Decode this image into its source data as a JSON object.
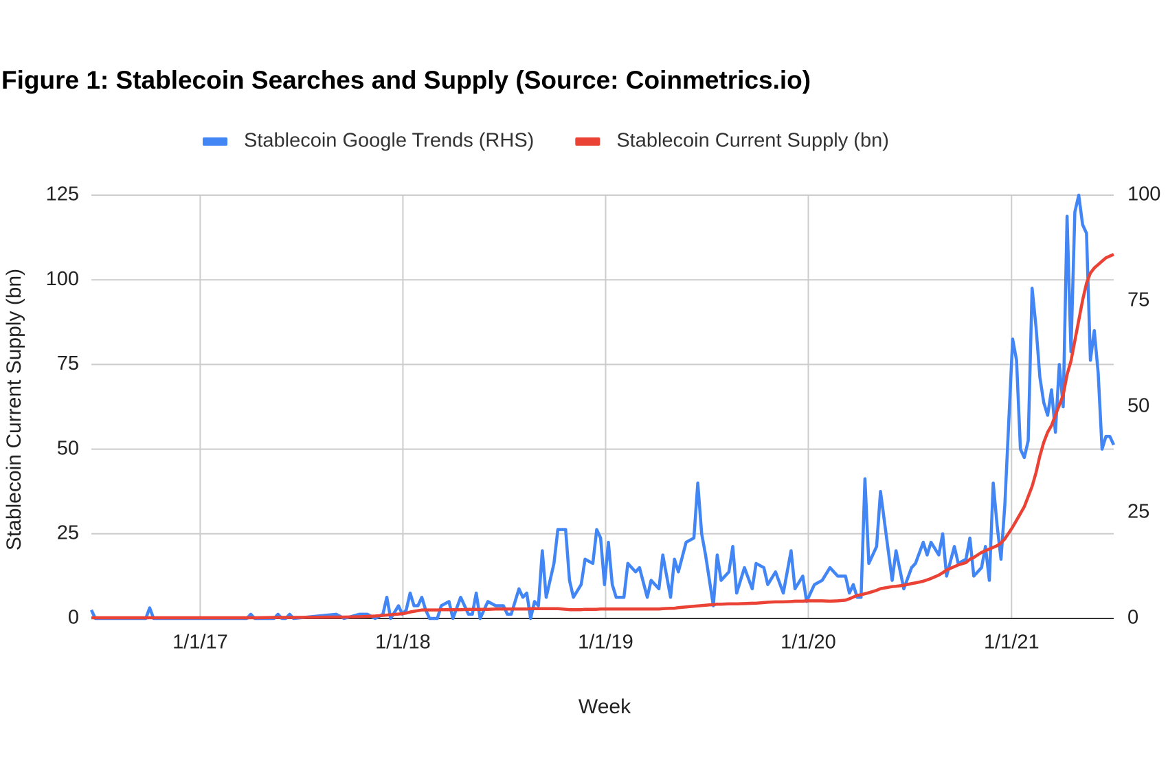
{
  "chart_data": {
    "type": "line",
    "title": "Figure 1: Stablecoin Searches and Supply (Source: Coinmetrics.io)",
    "xlabel": "Week",
    "ylabel": "Stablecoin Current Supply (bn)",
    "legend": "top",
    "grid": true,
    "xlim": [
      "6/19/16",
      "7/4/21"
    ],
    "xticks": [
      "1/1/17",
      "1/1/18",
      "1/1/19",
      "1/1/20",
      "1/1/21"
    ],
    "ylim": [
      0,
      125
    ],
    "yticks": [
      0,
      25,
      50,
      75,
      100,
      125
    ],
    "y2lim": [
      0,
      100
    ],
    "y2ticks": [
      0,
      25,
      50,
      75,
      100
    ],
    "x": [
      "6/19/16",
      "6/26/16",
      "9/25/16",
      "10/2/16",
      "10/9/16",
      "3/26/17",
      "4/2/17",
      "4/9/17",
      "5/14/17",
      "5/21/17",
      "5/28/17",
      "6/4/17",
      "6/11/17",
      "6/18/17",
      "9/3/17",
      "9/17/17",
      "10/15/17",
      "10/29/17",
      "11/12/17",
      "11/26/17",
      "12/3/17",
      "12/10/17",
      "12/24/17",
      "12/31/17",
      "1/7/18",
      "1/14/18",
      "1/21/18",
      "1/28/18",
      "2/4/18",
      "2/11/18",
      "2/18/18",
      "3/4/18",
      "3/11/18",
      "3/25/18",
      "4/1/18",
      "4/15/18",
      "4/29/18",
      "5/6/18",
      "5/13/18",
      "5/20/18",
      "6/3/18",
      "6/17/18",
      "7/1/18",
      "7/8/18",
      "7/15/18",
      "7/29/18",
      "8/5/18",
      "8/12/18",
      "8/19/18",
      "8/26/18",
      "9/2/18",
      "9/9/18",
      "9/16/18",
      "9/30/18",
      "10/7/18",
      "10/21/18",
      "10/28/18",
      "11/4/18",
      "11/18/18",
      "11/25/18",
      "12/9/18",
      "12/16/18",
      "12/23/18",
      "12/30/18",
      "1/6/19",
      "1/13/19",
      "1/20/19",
      "2/3/19",
      "2/10/19",
      "2/24/19",
      "3/3/19",
      "3/17/19",
      "3/24/19",
      "4/7/19",
      "4/14/19",
      "4/28/19",
      "5/5/19",
      "5/12/19",
      "5/26/19",
      "6/9/19",
      "6/16/19",
      "6/23/19",
      "6/30/19",
      "7/14/19",
      "7/21/19",
      "7/28/19",
      "8/11/19",
      "8/18/19",
      "8/25/19",
      "9/8/19",
      "9/22/19",
      "9/29/19",
      "10/13/19",
      "10/20/19",
      "11/3/19",
      "11/17/19",
      "12/1/19",
      "12/8/19",
      "12/22/19",
      "12/29/19",
      "1/12/20",
      "1/26/20",
      "2/9/20",
      "2/23/20",
      "3/8/20",
      "3/15/20",
      "3/22/20",
      "3/29/20",
      "4/5/20",
      "4/12/20",
      "4/19/20",
      "5/3/20",
      "5/10/20",
      "5/24/20",
      "5/31/20",
      "6/7/20",
      "6/21/20",
      "7/5/20",
      "7/12/20",
      "7/26/20",
      "8/2/20",
      "8/9/20",
      "8/23/20",
      "8/30/20",
      "9/6/20",
      "9/20/20",
      "9/27/20",
      "10/11/20",
      "10/18/20",
      "10/25/20",
      "11/8/20",
      "11/15/20",
      "11/22/20",
      "11/29/20",
      "12/6/20",
      "12/13/20",
      "12/20/20",
      "1/3/21",
      "1/10/21",
      "1/17/21",
      "1/24/21",
      "1/31/21",
      "2/7/21",
      "2/14/21",
      "2/21/21",
      "2/28/21",
      "3/7/21",
      "3/14/21",
      "3/21/21",
      "3/28/21",
      "4/4/21",
      "4/11/21",
      "4/18/21",
      "4/25/21",
      "5/2/21",
      "5/9/21",
      "5/16/21",
      "5/23/21",
      "5/30/21",
      "6/6/21",
      "6/13/21",
      "6/20/21",
      "6/27/21",
      "7/4/21"
    ],
    "series": [
      {
        "name": "Stablecoin Google Trends (RHS)",
        "color": "#4285f4",
        "axis": "y2",
        "values": [
          2,
          0,
          0,
          2.5,
          0,
          0,
          1,
          0,
          0,
          1,
          0,
          0,
          1,
          0,
          1,
          0,
          1,
          1,
          0,
          1,
          5,
          0,
          3,
          1,
          2,
          6,
          3,
          3,
          5,
          2,
          0,
          0,
          3,
          4,
          0,
          5,
          1,
          1,
          6,
          0,
          4,
          3,
          3,
          1,
          1,
          7,
          5,
          6,
          0,
          4,
          3,
          16,
          5,
          13,
          21,
          21,
          9,
          5,
          8,
          14,
          13,
          21,
          19,
          8,
          18,
          8,
          5,
          5,
          13,
          11,
          12,
          5,
          9,
          7,
          15,
          5,
          14,
          11,
          18,
          19,
          32,
          20,
          15,
          3,
          15,
          9,
          11,
          17,
          6,
          12,
          7,
          13,
          12,
          8,
          11,
          6,
          16,
          7,
          10,
          4,
          8,
          9,
          12,
          10,
          10,
          6,
          8,
          5,
          5,
          33,
          13,
          17,
          30,
          16,
          9,
          16,
          7,
          12,
          13,
          18,
          15,
          18,
          15,
          20,
          10,
          17,
          13,
          14,
          19,
          10,
          12,
          17,
          9,
          32,
          22,
          14,
          27,
          66,
          61,
          40,
          38,
          42,
          78,
          69,
          57,
          51,
          48,
          54,
          44,
          60,
          50,
          95,
          63,
          96,
          100,
          93,
          91,
          61,
          68,
          58,
          40,
          43,
          43,
          41
        ]
      },
      {
        "name": "Stablecoin Current Supply (bn)",
        "color": "#ea4335",
        "values": [
          0.2,
          0.2,
          0.2,
          0.2,
          0.2,
          0.2,
          0.2,
          0.2,
          0.3,
          0.3,
          0.3,
          0.3,
          0.3,
          0.3,
          0.4,
          0.4,
          0.5,
          0.6,
          0.7,
          0.9,
          1.0,
          1.1,
          1.3,
          1.4,
          1.6,
          1.9,
          2.1,
          2.3,
          2.5,
          2.5,
          2.5,
          2.5,
          2.6,
          2.6,
          2.6,
          2.6,
          2.7,
          2.7,
          2.7,
          2.7,
          2.7,
          2.8,
          2.8,
          2.8,
          2.8,
          2.8,
          2.8,
          2.8,
          2.9,
          2.9,
          2.9,
          2.9,
          2.9,
          2.9,
          2.9,
          2.7,
          2.6,
          2.6,
          2.6,
          2.7,
          2.7,
          2.7,
          2.8,
          2.8,
          2.8,
          2.8,
          2.8,
          2.8,
          2.8,
          2.8,
          2.8,
          2.8,
          2.8,
          2.8,
          2.9,
          3.0,
          3.0,
          3.2,
          3.4,
          3.6,
          3.7,
          3.8,
          3.9,
          4.1,
          4.2,
          4.2,
          4.3,
          4.3,
          4.3,
          4.4,
          4.5,
          4.5,
          4.7,
          4.8,
          4.9,
          4.9,
          5.0,
          5.1,
          5.1,
          5.2,
          5.2,
          5.2,
          5.1,
          5.2,
          5.4,
          5.8,
          6.3,
          6.8,
          7.0,
          7.3,
          7.6,
          8.3,
          8.8,
          9.2,
          9.4,
          9.5,
          9.8,
          10.3,
          10.5,
          11.0,
          11.4,
          11.8,
          12.8,
          13.5,
          14.3,
          15.3,
          15.8,
          16.5,
          17.5,
          18.0,
          19.5,
          20.0,
          20.5,
          21.0,
          21.5,
          22.3,
          23.5,
          27,
          29,
          31,
          33,
          36,
          39,
          43,
          48,
          52,
          55,
          57,
          60,
          63,
          66,
          72,
          76,
          82,
          88,
          94,
          99,
          102,
          103.5,
          104.5,
          105.5,
          106.5,
          107,
          107.5
        ]
      }
    ]
  }
}
